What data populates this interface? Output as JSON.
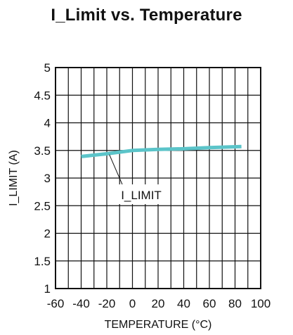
{
  "chart_data": {
    "type": "line",
    "title": "I_Limit vs. Temperature",
    "xlabel": "TEMPERATURE (°C)",
    "ylabel": "I_LIMIT (A)",
    "xlim": [
      -60,
      100
    ],
    "ylim": [
      1,
      5
    ],
    "x_ticks": [
      -60,
      -40,
      -20,
      0,
      20,
      40,
      60,
      80,
      100
    ],
    "x_tick_labels": [
      "-60",
      "-40",
      "-20",
      "0",
      "20",
      "40",
      "60",
      "80",
      "100"
    ],
    "y_ticks": [
      1,
      1.5,
      2,
      2.5,
      3,
      3.5,
      4,
      4.5,
      5
    ],
    "y_tick_labels": [
      "1",
      "1.5",
      "2",
      "2.5",
      "3",
      "3.5",
      "4",
      "4.5",
      "5"
    ],
    "minor_x_step": 10,
    "grid": true,
    "series": [
      {
        "name": "I_LIMIT",
        "color": "#5bc4c9",
        "x": [
          -40,
          -20,
          0,
          10,
          20,
          40,
          60,
          85
        ],
        "y": [
          3.39,
          3.44,
          3.5,
          3.51,
          3.52,
          3.53,
          3.55,
          3.57
        ]
      }
    ],
    "annotation": {
      "text": "I_LIMIT",
      "points_to": [
        -18,
        3.45
      ]
    }
  }
}
